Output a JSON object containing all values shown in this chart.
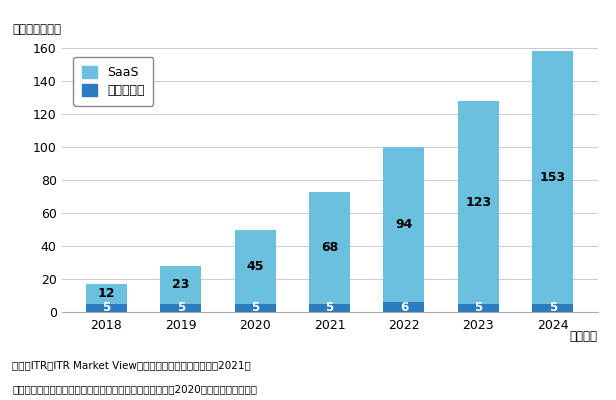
{
  "years": [
    "2018",
    "2019",
    "2020",
    "2021",
    "2022",
    "2023",
    "2024"
  ],
  "saas_values": [
    12,
    23,
    45,
    68,
    94,
    123,
    153
  ],
  "package_values": [
    5,
    5,
    5,
    5,
    6,
    5,
    5
  ],
  "saas_color": "#6bbfdf",
  "package_color": "#2b7bbf",
  "ylim": [
    0,
    160
  ],
  "yticks": [
    0,
    20,
    40,
    60,
    80,
    100,
    120,
    140,
    160
  ],
  "unit_label": "（単位：億円）",
  "xlabel": "（年度）",
  "legend_saas": "SaaS",
  "legend_package": "パッケージ",
  "footnote1": "出典：ITR『ITR Market View：人事・給与・就業管理市場2021』",
  "footnote2": "＊ベンダーの売上金額を対象とし、３月期ベースで換算。2020年度以降は予測値。",
  "background_color": "#ffffff",
  "grid_color": "#cccccc"
}
